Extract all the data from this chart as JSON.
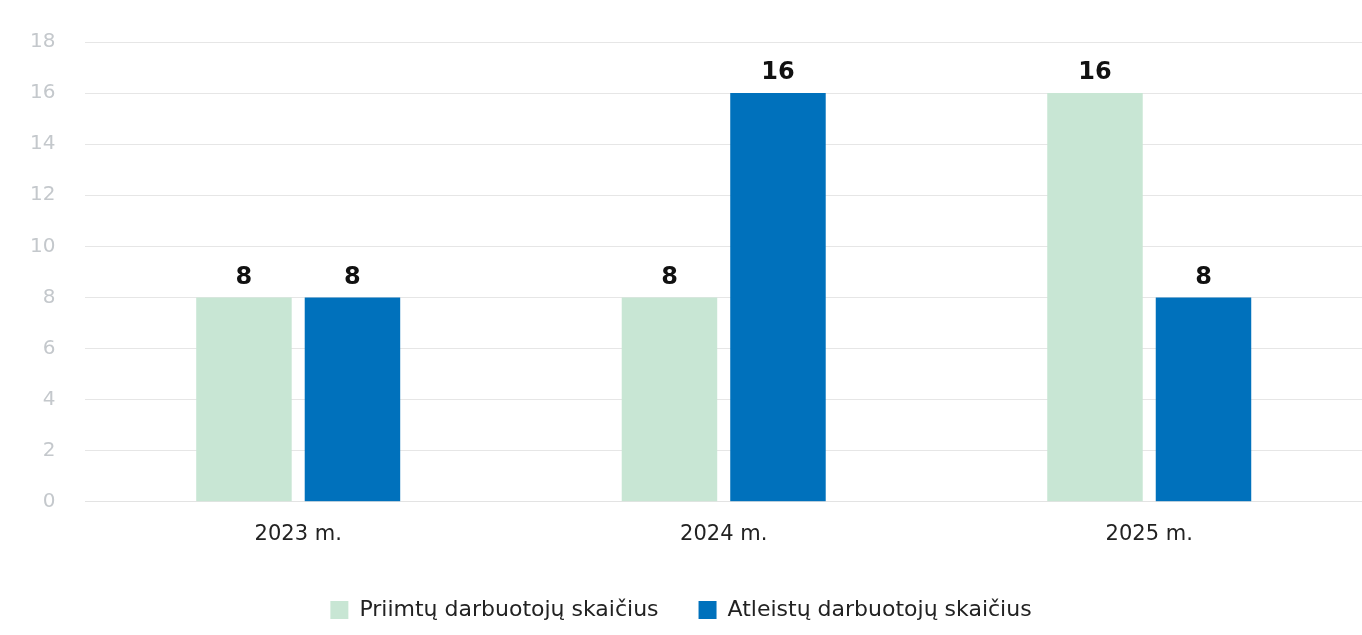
{
  "chart_data": {
    "type": "bar",
    "categories": [
      "2023 m.",
      "2024 m.",
      "2025 m."
    ],
    "series": [
      {
        "name": "Priimtų darbuotojų skaičius",
        "color": "#c8e6d4",
        "values": [
          8,
          8,
          16
        ]
      },
      {
        "name": "Atleistų darbuotojų skaičius",
        "color": "#0071bc",
        "values": [
          8,
          16,
          8
        ]
      }
    ],
    "ylim": [
      0,
      18
    ],
    "yticks": [
      0,
      2,
      4,
      6,
      8,
      10,
      12,
      14,
      16,
      18
    ],
    "grid": "y",
    "legend": "bottom",
    "data_labels": true
  }
}
